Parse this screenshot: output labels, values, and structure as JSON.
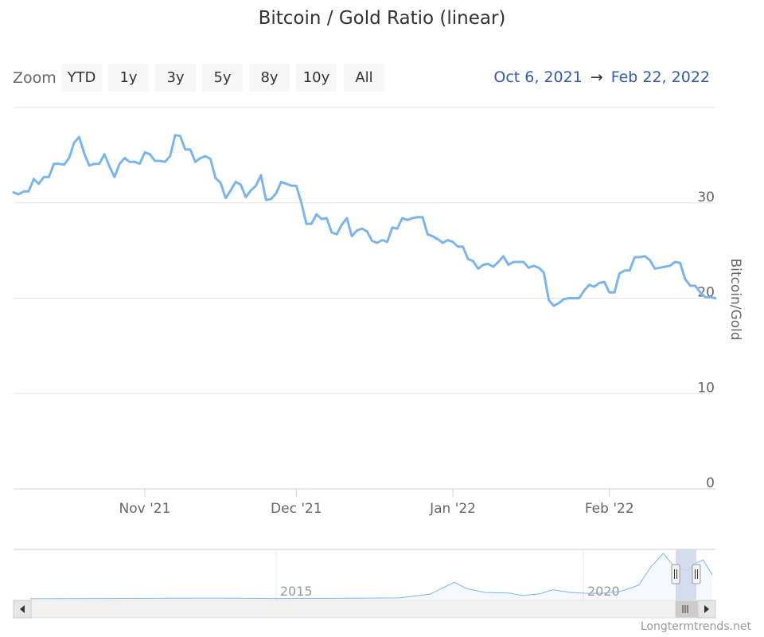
{
  "title": "Bitcoin / Gold Ratio (linear)",
  "zoom": {
    "label": "Zoom",
    "buttons": [
      "YTD",
      "1y",
      "3y",
      "5y",
      "8y",
      "10y",
      "All"
    ]
  },
  "range": {
    "from": "Oct 6, 2021",
    "arrow": "→",
    "to": "Feb 22, 2022"
  },
  "credits": "Longtermtrends.net",
  "colors": {
    "series": "#7cb5ec",
    "grid": "#e6e6e6",
    "range_text": "#335cad",
    "navigator_mask": "#ccd6eb"
  },
  "chart_data": {
    "type": "line",
    "title": "Bitcoin / Gold Ratio (linear)",
    "ylabel": "Bitcoin/Gold",
    "ylim": [
      0,
      40
    ],
    "yticks": [
      0,
      10,
      20,
      30
    ],
    "xrange": [
      "2021-10-06",
      "2022-02-22"
    ],
    "xticks": [
      {
        "date": "2021-11-01",
        "label": "Nov '21"
      },
      {
        "date": "2021-12-01",
        "label": "Dec '21"
      },
      {
        "date": "2022-01-01",
        "label": "Jan '22"
      },
      {
        "date": "2022-02-01",
        "label": "Feb '22"
      }
    ],
    "grid": true,
    "legend": "none",
    "series": [
      {
        "x": [
          "2021-10-06",
          "2021-10-07",
          "2021-10-08",
          "2021-10-09",
          "2021-10-10",
          "2021-10-11",
          "2021-10-12",
          "2021-10-13",
          "2021-10-14",
          "2021-10-15",
          "2021-10-16",
          "2021-10-17",
          "2021-10-18",
          "2021-10-19",
          "2021-10-20",
          "2021-10-21",
          "2021-10-22",
          "2021-10-23",
          "2021-10-24",
          "2021-10-25",
          "2021-10-26",
          "2021-10-27",
          "2021-10-28",
          "2021-10-29",
          "2021-10-30",
          "2021-10-31",
          "2021-11-01",
          "2021-11-02",
          "2021-11-03",
          "2021-11-04",
          "2021-11-05",
          "2021-11-06",
          "2021-11-07",
          "2021-11-08",
          "2021-11-09",
          "2021-11-10",
          "2021-11-11",
          "2021-11-12",
          "2021-11-13",
          "2021-11-14",
          "2021-11-15",
          "2021-11-16",
          "2021-11-17",
          "2021-11-18",
          "2021-11-19",
          "2021-11-20",
          "2021-11-21",
          "2021-11-22",
          "2021-11-23",
          "2021-11-24",
          "2021-11-25",
          "2021-11-26",
          "2021-11-27",
          "2021-11-28",
          "2021-11-29",
          "2021-11-30",
          "2021-12-01",
          "2021-12-02",
          "2021-12-03",
          "2021-12-04",
          "2021-12-05",
          "2021-12-06",
          "2021-12-07",
          "2021-12-08",
          "2021-12-09",
          "2021-12-10",
          "2021-12-11",
          "2021-12-12",
          "2021-12-13",
          "2021-12-14",
          "2021-12-15",
          "2021-12-16",
          "2021-12-17",
          "2021-12-18",
          "2021-12-19",
          "2021-12-20",
          "2021-12-21",
          "2021-12-22",
          "2021-12-23",
          "2021-12-24",
          "2021-12-25",
          "2021-12-26",
          "2021-12-27",
          "2021-12-28",
          "2021-12-29",
          "2021-12-30",
          "2021-12-31",
          "2022-01-01",
          "2022-01-02",
          "2022-01-03",
          "2022-01-04",
          "2022-01-05",
          "2022-01-06",
          "2022-01-07",
          "2022-01-08",
          "2022-01-09",
          "2022-01-10",
          "2022-01-11",
          "2022-01-12",
          "2022-01-13",
          "2022-01-14",
          "2022-01-15",
          "2022-01-16",
          "2022-01-17",
          "2022-01-18",
          "2022-01-19",
          "2022-01-20",
          "2022-01-21",
          "2022-01-22",
          "2022-01-23",
          "2022-01-24",
          "2022-01-25",
          "2022-01-26",
          "2022-01-27",
          "2022-01-28",
          "2022-01-29",
          "2022-01-30",
          "2022-01-31",
          "2022-02-01",
          "2022-02-02",
          "2022-02-03",
          "2022-02-04",
          "2022-02-05",
          "2022-02-06",
          "2022-02-07",
          "2022-02-08",
          "2022-02-09",
          "2022-02-10",
          "2022-02-11",
          "2022-02-12",
          "2022-02-13",
          "2022-02-14",
          "2022-02-15",
          "2022-02-16",
          "2022-02-17",
          "2022-02-18",
          "2022-02-19",
          "2022-02-20",
          "2022-02-21",
          "2022-02-22"
        ],
        "y": [
          31.1,
          30.9,
          31.2,
          31.2,
          32.5,
          32.0,
          32.7,
          32.7,
          34.1,
          34.1,
          34.0,
          34.7,
          36.3,
          36.9,
          35.2,
          33.9,
          34.1,
          34.1,
          35.1,
          33.8,
          32.7,
          34.1,
          34.7,
          34.3,
          34.3,
          34.1,
          35.3,
          35.1,
          34.4,
          34.4,
          34.3,
          34.9,
          37.1,
          37.0,
          35.6,
          35.6,
          34.3,
          34.7,
          34.9,
          34.6,
          32.6,
          32.1,
          30.5,
          31.3,
          32.2,
          31.9,
          30.6,
          31.3,
          31.8,
          32.9,
          30.3,
          30.4,
          31.0,
          32.2,
          32.0,
          31.8,
          31.8,
          30.0,
          27.8,
          27.8,
          28.8,
          28.3,
          28.4,
          26.9,
          26.7,
          27.7,
          28.4,
          26.5,
          27.1,
          27.3,
          27.0,
          26.0,
          25.8,
          26.1,
          25.9,
          27.4,
          27.3,
          28.4,
          28.2,
          28.4,
          28.5,
          28.5,
          26.7,
          26.5,
          26.2,
          25.8,
          26.1,
          25.9,
          25.4,
          25.4,
          24.1,
          23.9,
          23.1,
          23.5,
          23.6,
          23.3,
          23.8,
          24.4,
          23.5,
          23.8,
          23.8,
          23.8,
          23.2,
          23.4,
          23.2,
          22.7,
          19.8,
          19.2,
          19.5,
          19.9,
          20.0,
          20.0,
          20.0,
          20.8,
          21.4,
          21.2,
          21.6,
          21.7,
          20.6,
          20.6,
          22.6,
          22.9,
          22.9,
          24.3,
          24.3,
          24.4,
          24.0,
          23.1,
          23.2,
          23.3,
          23.4,
          23.8,
          23.7,
          22.0,
          21.3,
          21.3,
          20.6,
          20.1,
          20.1,
          20.0
        ]
      }
    ],
    "navigator": {
      "tick_labels": [
        "2015",
        "2020"
      ],
      "ratio_note": "full-history series shown in navigator",
      "history_x": [
        2011.0,
        2012.0,
        2013.0,
        2014.0,
        2015.0,
        2016.0,
        2016.5,
        2017.0,
        2017.5,
        2017.9,
        2018.1,
        2018.4,
        2018.8,
        2019.0,
        2019.3,
        2019.5,
        2019.8,
        2020.0,
        2020.3,
        2020.6,
        2020.9,
        2021.1,
        2021.3,
        2021.5,
        2021.7,
        2021.85,
        2021.95,
        2022.1
      ],
      "history_y": [
        0.1,
        0.3,
        0.4,
        0.6,
        0.3,
        0.4,
        0.6,
        0.8,
        4.0,
        14.5,
        9.0,
        5.5,
        5.0,
        2.8,
        4.5,
        8.0,
        5.5,
        5.0,
        4.8,
        6.5,
        12.0,
        28.0,
        40.0,
        27.0,
        25.0,
        32.0,
        34.0,
        21.0
      ]
    }
  }
}
